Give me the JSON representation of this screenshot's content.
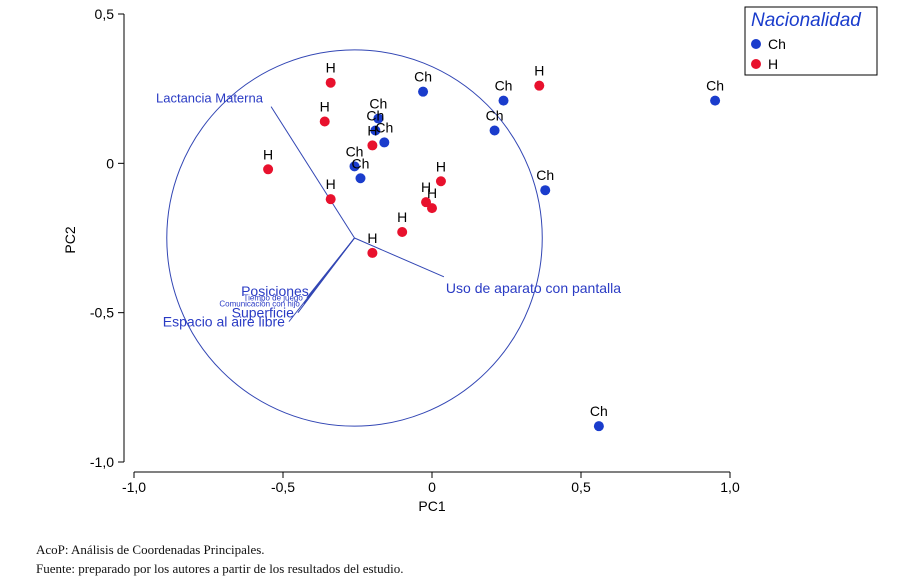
{
  "chart_data": {
    "type": "scatter",
    "xlabel": "PC1",
    "ylabel": "PC2",
    "xlim": [
      -1.0,
      1.0
    ],
    "ylim": [
      -1.0,
      0.5
    ],
    "xticks": [
      -1.0,
      -0.5,
      0.0,
      0.5,
      1.0
    ],
    "yticks": [
      -1.0,
      -0.5,
      0.0,
      0.5
    ],
    "xtick_labels": [
      "-1,0",
      "-0,5",
      "0",
      "0,5",
      "1,0"
    ],
    "ytick_labels": [
      "-1,0",
      "-0,5",
      "0",
      "0,5"
    ],
    "grid": false,
    "legend": {
      "title": "Nacionalidad",
      "placement": "top-right",
      "entries": [
        {
          "label": "Ch",
          "color": "#1a3ccc"
        },
        {
          "label": "H",
          "color": "#e8112d"
        }
      ]
    },
    "series": [
      {
        "name": "Ch",
        "color": "#1a3ccc",
        "points": [
          {
            "x": -0.03,
            "y": 0.24,
            "label": "Ch"
          },
          {
            "x": 0.24,
            "y": 0.21,
            "label": "Ch"
          },
          {
            "x": 0.21,
            "y": 0.11,
            "label": "Ch"
          },
          {
            "x": 0.95,
            "y": 0.21,
            "label": "Ch"
          },
          {
            "x": 0.38,
            "y": -0.09,
            "label": "Ch"
          },
          {
            "x": -0.18,
            "y": 0.15,
            "label": "Ch"
          },
          {
            "x": -0.19,
            "y": 0.11,
            "label": "Ch"
          },
          {
            "x": -0.16,
            "y": 0.07,
            "label": "Ch"
          },
          {
            "x": -0.26,
            "y": -0.01,
            "label": "Ch"
          },
          {
            "x": -0.24,
            "y": -0.05,
            "label": "Ch"
          },
          {
            "x": 0.56,
            "y": -0.88,
            "label": "Ch"
          }
        ]
      },
      {
        "name": "H",
        "color": "#e8112d",
        "points": [
          {
            "x": -0.34,
            "y": 0.27,
            "label": "H"
          },
          {
            "x": -0.36,
            "y": 0.14,
            "label": "H"
          },
          {
            "x": 0.36,
            "y": 0.26,
            "label": "H"
          },
          {
            "x": -0.55,
            "y": -0.02,
            "label": "H"
          },
          {
            "x": -0.2,
            "y": 0.06,
            "label": "H"
          },
          {
            "x": 0.03,
            "y": -0.06,
            "label": "H"
          },
          {
            "x": -0.34,
            "y": -0.12,
            "label": "H"
          },
          {
            "x": -0.02,
            "y": -0.13,
            "label": "H"
          },
          {
            "x": 0.0,
            "y": -0.15,
            "label": "H"
          },
          {
            "x": -0.1,
            "y": -0.23,
            "label": "H"
          },
          {
            "x": -0.2,
            "y": -0.3,
            "label": "H"
          }
        ]
      }
    ],
    "variables": [
      {
        "label": "Lactancia Materna",
        "x": -0.54,
        "y": 0.19
      },
      {
        "label": "Uso de aparato con pantalla",
        "x": 0.04,
        "y": -0.38
      },
      {
        "label": "Posiciones",
        "x": -0.4,
        "y": -0.43
      },
      {
        "label": "Tiempo de juego",
        "x": -0.42,
        "y": -0.45
      },
      {
        "label": "Comunicación con hijo",
        "x": -0.43,
        "y": -0.47
      },
      {
        "label": "Superficie",
        "x": -0.45,
        "y": -0.5
      },
      {
        "label": "Espacio al aire libre",
        "x": -0.48,
        "y": -0.53
      }
    ],
    "circle": {
      "center_x": -0.26,
      "center_y": -0.25,
      "radius": 0.63
    }
  },
  "captions": {
    "line1": "AcoP: Análisis de Coordenadas Principales.",
    "line2": "Fuente: preparado por los autores a partir de los resultados del estudio."
  }
}
